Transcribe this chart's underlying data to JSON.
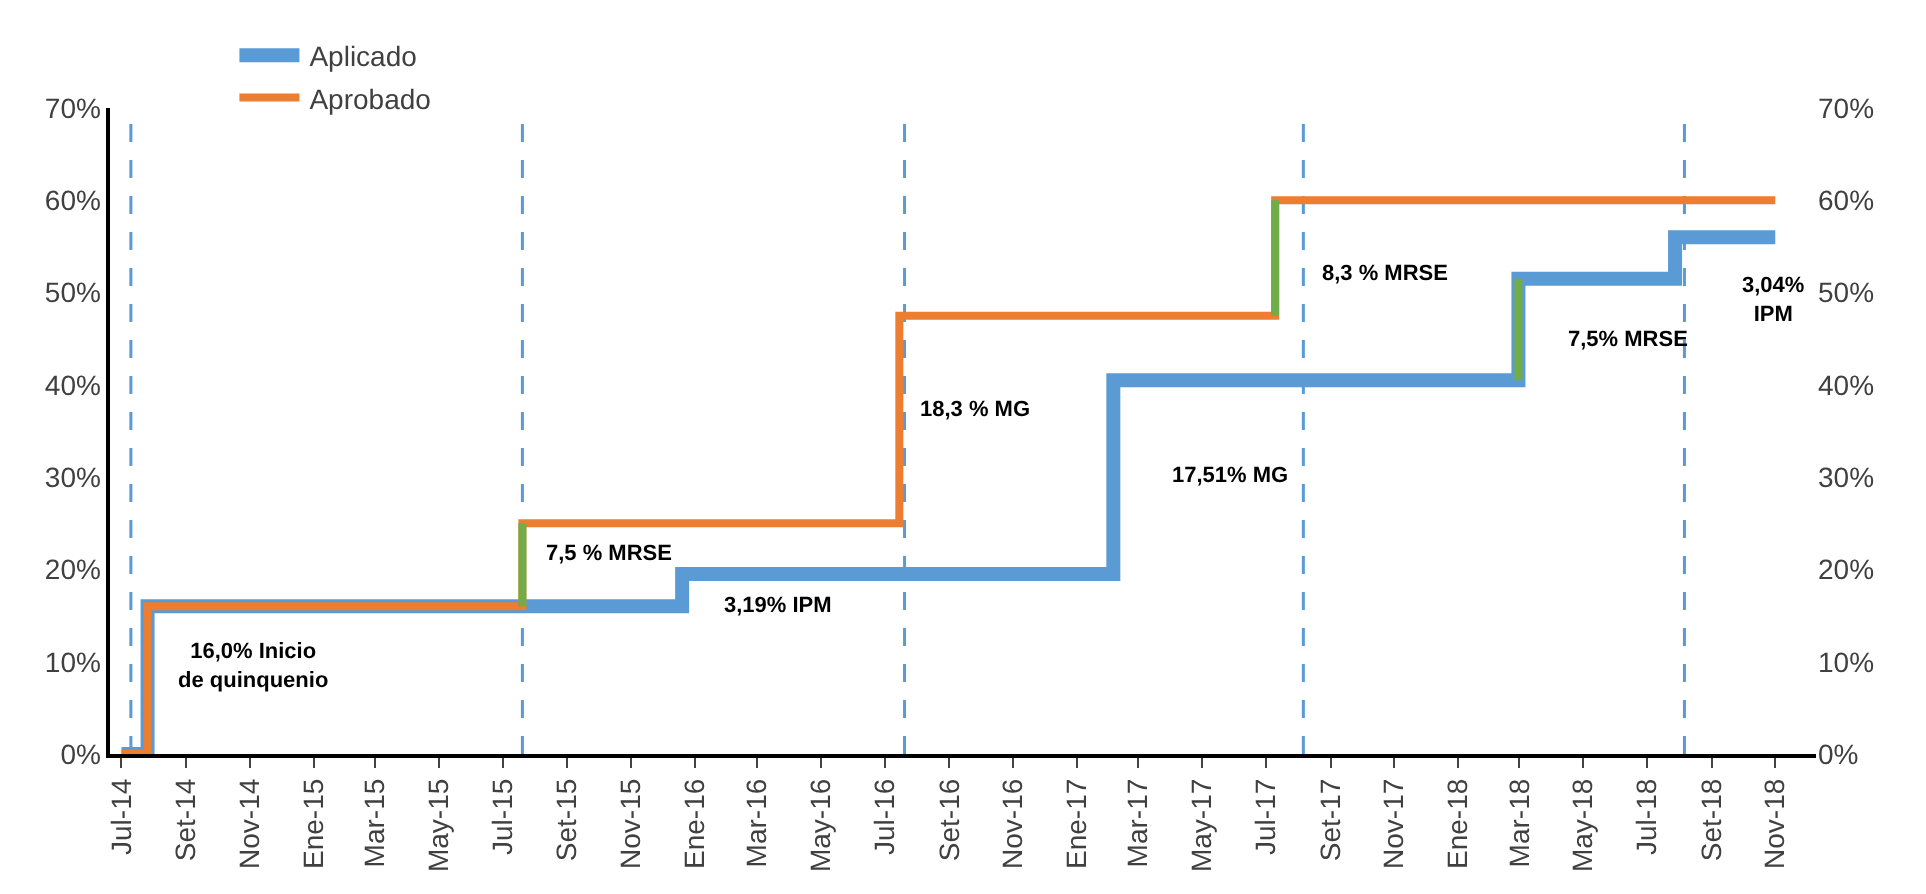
{
  "chart_data": {
    "type": "step",
    "series": [
      {
        "name": "Aplicado",
        "color": "#5b9bd5",
        "x": [
          "2014-07-01",
          "2014-07-26",
          "2015-12-20",
          "2017-02-05",
          "2018-02-28",
          "2018-07-28",
          "2018-11-01"
        ],
        "values": [
          0,
          16,
          19.5,
          40.5,
          51.5,
          56,
          56
        ]
      },
      {
        "name": "Aprobado",
        "color": "#ed7d31",
        "x": [
          "2014-07-01",
          "2014-07-26",
          "2015-07-20",
          "2016-07-15",
          "2017-07-10",
          "2018-11-01"
        ],
        "values": [
          0,
          16,
          25,
          47.5,
          60,
          60
        ]
      },
      {
        "type": "line",
        "color": "#70ad47",
        "x": [
          "2015-07-20",
          "2015-07-20"
        ],
        "values": [
          16,
          25
        ]
      },
      {
        "type": "line",
        "color": "#70ad47",
        "x": [
          "2017-07-10",
          "2017-07-10"
        ],
        "values": [
          47.5,
          60
        ]
      },
      {
        "type": "line",
        "color": "#70ad47",
        "x": [
          "2018-02-28",
          "2018-02-28"
        ],
        "values": [
          40.5,
          51.5
        ]
      }
    ],
    "xlim": [
      "2014-06-20",
      "2018-12-10"
    ],
    "xticks": [
      {
        "value": "2014-07-01",
        "label": "Jul-14"
      },
      {
        "value": "2014-09-01",
        "label": "Set-14"
      },
      {
        "value": "2014-11-01",
        "label": "Nov-14"
      },
      {
        "value": "2015-01-01",
        "label": "Ene-15"
      },
      {
        "value": "2015-03-01",
        "label": "Mar-15"
      },
      {
        "value": "2015-05-01",
        "label": "May-15"
      },
      {
        "value": "2015-07-01",
        "label": "Jul-15"
      },
      {
        "value": "2015-09-01",
        "label": "Set-15"
      },
      {
        "value": "2015-11-01",
        "label": "Nov-15"
      },
      {
        "value": "2016-01-01",
        "label": "Ene-16"
      },
      {
        "value": "2016-03-01",
        "label": "Mar-16"
      },
      {
        "value": "2016-05-01",
        "label": "May-16"
      },
      {
        "value": "2016-07-01",
        "label": "Jul-16"
      },
      {
        "value": "2016-09-01",
        "label": "Set-16"
      },
      {
        "value": "2016-11-01",
        "label": "Nov-16"
      },
      {
        "value": "2017-01-01",
        "label": "Ene-17"
      },
      {
        "value": "2017-03-01",
        "label": "Mar-17"
      },
      {
        "value": "2017-05-01",
        "label": "May-17"
      },
      {
        "value": "2017-07-01",
        "label": "Jul-17"
      },
      {
        "value": "2017-09-01",
        "label": "Set-17"
      },
      {
        "value": "2017-11-01",
        "label": "Nov-17"
      },
      {
        "value": "2018-01-01",
        "label": "Ene-18"
      },
      {
        "value": "2018-03-01",
        "label": "Mar-18"
      },
      {
        "value": "2018-05-01",
        "label": "May-18"
      },
      {
        "value": "2018-07-01",
        "label": "Jul-18"
      },
      {
        "value": "2018-09-01",
        "label": "Set-18"
      },
      {
        "value": "2018-11-01",
        "label": "Nov-18"
      }
    ],
    "ylim": [
      0,
      70
    ],
    "yticks": [
      {
        "value": 0,
        "label": "0%"
      },
      {
        "value": 10,
        "label": "10%"
      },
      {
        "value": 20,
        "label": "20%"
      },
      {
        "value": 30,
        "label": "30%"
      },
      {
        "value": 40,
        "label": "40%"
      },
      {
        "value": 50,
        "label": "50%"
      },
      {
        "value": 60,
        "label": "60%"
      },
      {
        "value": 70,
        "label": "70%"
      }
    ],
    "y2lim": [
      0,
      70
    ],
    "y2ticks": [
      {
        "value": 0,
        "label": "0%"
      },
      {
        "value": 10,
        "label": "10%"
      },
      {
        "value": 20,
        "label": "20%"
      },
      {
        "value": 30,
        "label": "30%"
      },
      {
        "value": 40,
        "label": "40%"
      },
      {
        "value": 50,
        "label": "50%"
      },
      {
        "value": 60,
        "label": "60%"
      },
      {
        "value": 70,
        "label": "70%"
      }
    ],
    "ref_lines": [
      {
        "axis": "x",
        "value": "2014-07-10",
        "color": "#5b9bd5",
        "line_style": "dashed"
      },
      {
        "axis": "x",
        "value": "2015-07-20",
        "color": "#5b9bd5",
        "line_style": "dashed"
      },
      {
        "axis": "x",
        "value": "2016-07-20",
        "color": "#5b9bd5",
        "line_style": "dashed"
      },
      {
        "axis": "x",
        "value": "2017-08-06",
        "color": "#5b9bd5",
        "line_style": "dashed"
      },
      {
        "axis": "x",
        "value": "2018-08-06",
        "color": "#5b9bd5",
        "line_style": "dashed"
      }
    ],
    "annotations": [
      "16,0% Inicio\nde quinquenio",
      "7,5 % MRSE",
      "3,19% IPM",
      "18,3 % MG",
      "17,51% MG",
      "8,3 % MRSE",
      "7,5% MRSE",
      "3,04%\nIPM"
    ],
    "grid": false,
    "legend": "top left",
    "marker": "none",
    "line_style": "solid"
  }
}
